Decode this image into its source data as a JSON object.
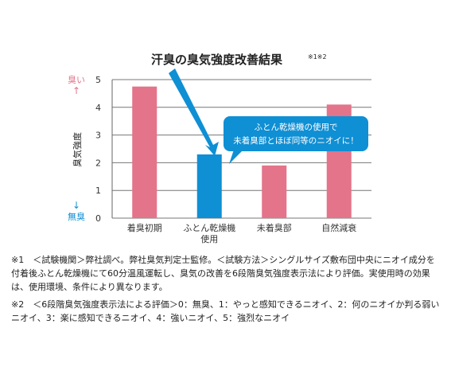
{
  "chart_data": {
    "type": "bar",
    "title": "汗臭の臭気強度改善結果",
    "title_note": "※1※2",
    "ylabel": "臭気強度",
    "y_top_label": "臭い",
    "y_bottom_label": "無臭",
    "y_top_arrow": "↑",
    "y_bottom_arrow": "↓",
    "ylim": [
      0,
      5
    ],
    "yticks": [
      0,
      1,
      2,
      3,
      4,
      5
    ],
    "grid": true,
    "categories": [
      {
        "line1": "着臭初期",
        "line2": ""
      },
      {
        "line1": "ふとん乾燥機",
        "line2": "使用"
      },
      {
        "line1": "未着臭部",
        "line2": ""
      },
      {
        "line1": "自然減衰",
        "line2": ""
      }
    ],
    "values": [
      4.75,
      2.3,
      1.9,
      4.1
    ],
    "highlight_index": 1,
    "callout": {
      "line1": "ふとん乾燥機の使用で",
      "line2": "未着臭部とほぼ同等のニオイに！"
    },
    "colors": {
      "bar": "#e3748a",
      "highlight": "#0f8fd4",
      "accent": "#e3748a"
    }
  },
  "footnotes": {
    "note1": "※1　＜試験機関＞弊社調べ。弊社臭気判定士監修。＜試験方法＞シングルサイズ敷布団中央にニオイ成分を付着後ふとん乾燥機にて60分温風運転し、臭気の改善を6段階臭気強度表示法により評価。実使用時の効果は、使用環境、条件により異なります。",
    "note2": "※2　＜6段階臭気強度表示法による評価＞0：無臭、1：やっと感知できるニオイ、2：何のニオイか判る弱いニオイ、3：楽に感知できるニオイ、4：強いニオイ、5：強烈なニオイ"
  }
}
